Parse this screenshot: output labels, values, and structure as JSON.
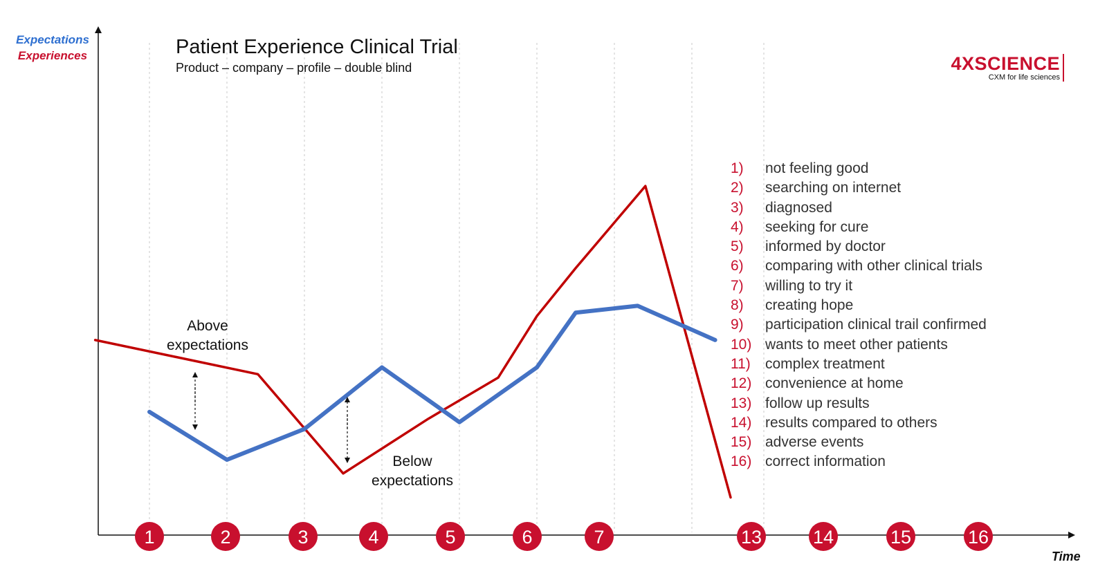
{
  "header": {
    "title": "Patient Experience Clinical Trial",
    "subtitle": "Product – company – profile – double blind"
  },
  "logo": {
    "name": "4XSCIENCE",
    "tagline": "CXM for life sciences"
  },
  "annotations": {
    "above": "Above expectations",
    "below": "Below expectations"
  },
  "colors": {
    "expectations": "#4472c4",
    "experiences": "#c00000",
    "marker": "#c8102e"
  },
  "chart_data": {
    "type": "line",
    "xlabel": "Time",
    "ylabel": [
      "Expectations",
      "Experiences"
    ],
    "x_markers": [
      1,
      2,
      3,
      4,
      5,
      6,
      7,
      13,
      14,
      15,
      16
    ],
    "series": [
      {
        "name": "Expectations",
        "x": [
          1,
          2,
          3,
          4,
          5,
          6,
          6.5,
          7.3,
          8.3
        ],
        "y": [
          36,
          22,
          31,
          49,
          33,
          49,
          65,
          67,
          57
        ]
      },
      {
        "name": "Experiences",
        "x": [
          0.3,
          2.4,
          3.5,
          4.6,
          5.5,
          6,
          6.5,
          7.4,
          8.5
        ],
        "y": [
          57,
          47,
          18,
          34,
          46,
          64,
          78,
          102,
          11
        ]
      }
    ],
    "grid": "vertical dotted lines at each stage"
  },
  "legend": {
    "items": [
      {
        "num": "1)",
        "text": "not feeling good"
      },
      {
        "num": "2)",
        "text": "searching on internet"
      },
      {
        "num": "3)",
        "text": "diagnosed"
      },
      {
        "num": "4)",
        "text": "seeking for cure"
      },
      {
        "num": "5)",
        "text": "informed by doctor"
      },
      {
        "num": "6)",
        "text": "comparing with other clinical trials"
      },
      {
        "num": "7)",
        "text": "willing to try it"
      },
      {
        "num": "8)",
        "text": "creating hope"
      },
      {
        "num": "9)",
        "text": "participation clinical trail confirmed"
      },
      {
        "num": "10)",
        "text": "wants to meet other patients"
      },
      {
        "num": "11)",
        "text": "complex treatment"
      },
      {
        "num": "12)",
        "text": "convenience at home"
      },
      {
        "num": "13)",
        "text": "follow up results"
      },
      {
        "num": "14)",
        "text": "results compared to others"
      },
      {
        "num": "15)",
        "text": "adverse events"
      },
      {
        "num": "16)",
        "text": "correct information"
      }
    ]
  }
}
